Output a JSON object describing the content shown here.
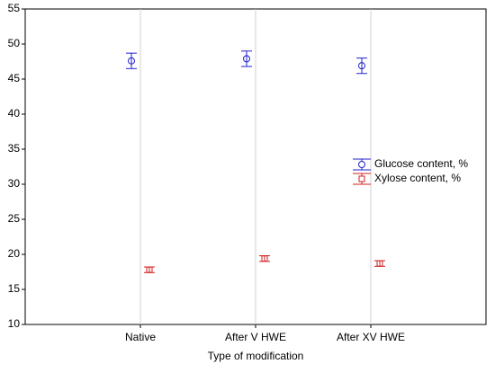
{
  "chart_data": {
    "type": "errorbar",
    "x_label": "Type of modification",
    "categories": [
      "Native",
      "After V HWE",
      "After XV HWE"
    ],
    "series": [
      {
        "name": "Glucose content, %",
        "color": "#1f1fcf",
        "marker": "circle",
        "values": [
          47.6,
          47.9,
          46.9
        ],
        "errors": [
          1.1,
          1.1,
          1.1
        ]
      },
      {
        "name": "Xylose content, %",
        "color": "#d01f1f",
        "marker": "square",
        "values": [
          17.8,
          19.4,
          18.7
        ],
        "errors": [
          0.4,
          0.4,
          0.4
        ]
      }
    ],
    "ylim": [
      10,
      55
    ],
    "yticks": [
      10,
      15,
      20,
      25,
      30,
      35,
      40,
      45,
      50,
      55
    ],
    "grid": "x",
    "legend": "right"
  }
}
